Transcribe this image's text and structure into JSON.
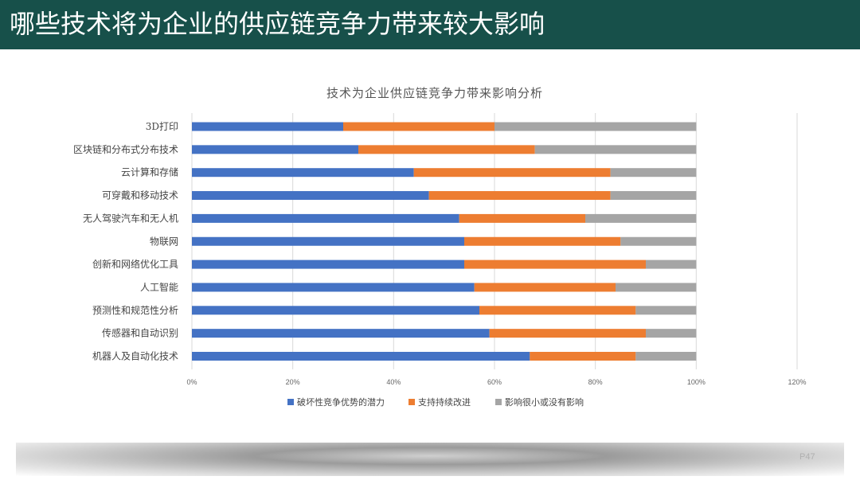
{
  "slide": {
    "title": "哪些技术将为企业的供应链竞争力带来较大影响",
    "page_number": "P47"
  },
  "chart_data": {
    "type": "bar",
    "orientation": "horizontal",
    "stacked": true,
    "title": "技术为企业供应链竞争力带来影响分析",
    "categories": [
      "3D打印",
      "区块链和分布式分布技术",
      "云计算和存储",
      "可穿戴和移动技术",
      "无人驾驶汽车和无人机",
      "物联网",
      "创新和网络优化工具",
      "人工智能",
      "预测性和规范性分析",
      "传感器和自动识别",
      "机器人及自动化技术"
    ],
    "series": [
      {
        "name": "破坏性竞争优势的潜力",
        "color": "#4472c4",
        "values": [
          30,
          33,
          44,
          47,
          53,
          54,
          54,
          56,
          57,
          59,
          67
        ]
      },
      {
        "name": "支持持续改进",
        "color": "#ed7d31",
        "values": [
          30,
          35,
          39,
          36,
          25,
          31,
          36,
          28,
          31,
          31,
          21
        ]
      },
      {
        "name": "影响很小或没有影响",
        "color": "#a5a5a5",
        "values": [
          40,
          32,
          17,
          17,
          22,
          15,
          10,
          16,
          12,
          10,
          12
        ]
      }
    ],
    "xlim": [
      0,
      120
    ],
    "x_ticks": [
      "0%",
      "20%",
      "40%",
      "60%",
      "80%",
      "100%",
      "120%"
    ],
    "grid": true,
    "legend_position": "bottom"
  }
}
